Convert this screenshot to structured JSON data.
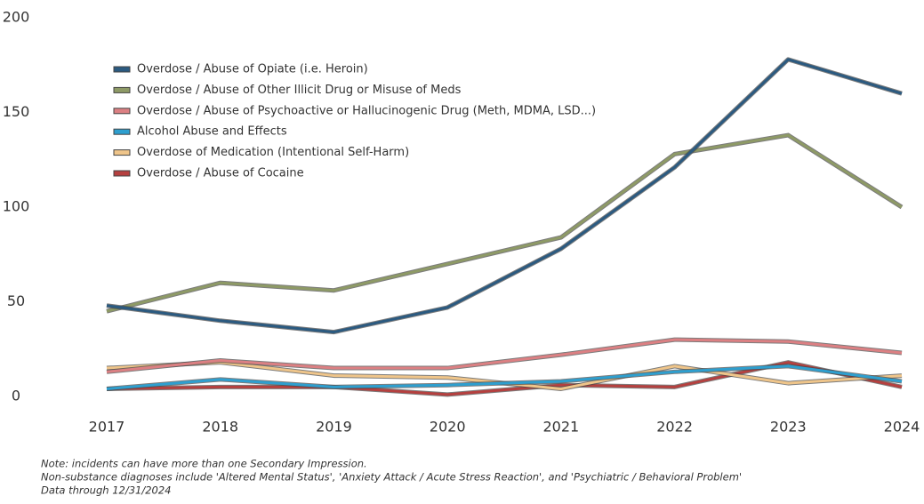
{
  "chart_data": {
    "type": "line",
    "categories": [
      "2017",
      "2018",
      "2019",
      "2020",
      "2021",
      "2022",
      "2023",
      "2024"
    ],
    "series": [
      {
        "name": "Overdose / Abuse of Opiate (i.e. Heroin)",
        "color": "#2b5a80",
        "values": [
          48,
          40,
          34,
          47,
          78,
          121,
          178,
          160
        ]
      },
      {
        "name": "Overdose / Abuse of Other Illicit Drug or Misuse of Meds",
        "color": "#8e9a66",
        "values": [
          45,
          60,
          56,
          70,
          84,
          128,
          138,
          100
        ]
      },
      {
        "name": "Overdose / Abuse of Psychoactive or Hallucinogenic Drug (Meth, MDMA, LSD...)",
        "color": "#dc8083",
        "values": [
          13,
          19,
          15,
          15,
          22,
          30,
          29,
          23
        ]
      },
      {
        "name": "Alcohol Abuse and Effects",
        "color": "#2e9fcf",
        "values": [
          4,
          9,
          5,
          6,
          8,
          13,
          16,
          8
        ]
      },
      {
        "name": "Overdose of Medication (Intentional Self-Harm)",
        "color": "#efc58a",
        "values": [
          15,
          18,
          11,
          10,
          4,
          16,
          7,
          11
        ]
      },
      {
        "name": "Overdose / Abuse of Cocaine",
        "color": "#b5403f",
        "values": [
          4,
          5,
          5,
          1,
          6,
          5,
          18,
          5
        ]
      }
    ],
    "ylim": [
      0,
      200
    ],
    "yticks": [
      0,
      50,
      100,
      150,
      200
    ],
    "grid": false,
    "notes": [
      "Note: incidents can have more than one Secondary Impression.",
      "Non-substance diagnoses include 'Altered Mental Status', 'Anxiety Attack / Acute Stress Reaction', and 'Psychiatric / Behavioral Problem'",
      "Data through 12/31/2024"
    ]
  }
}
